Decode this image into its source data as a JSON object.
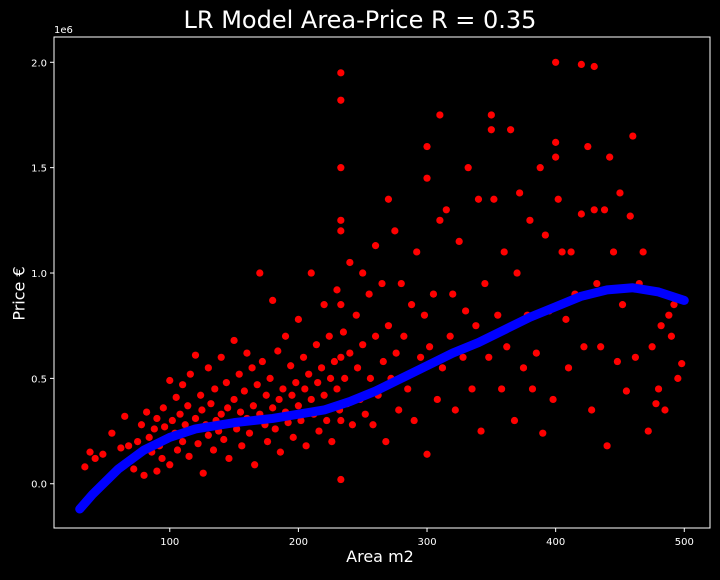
{
  "chart_data": {
    "type": "scatter",
    "title": "LR Model Area-Price R = 0.35",
    "xlabel": "Area m2",
    "ylabel": "Price €",
    "y_offset_text": "1e6",
    "xlim": [
      10,
      520
    ],
    "ylim": [
      -0.21,
      2.12
    ],
    "x_ticks": [
      100,
      200,
      300,
      400,
      500
    ],
    "y_ticks": [
      0.0,
      0.5,
      1.0,
      1.5,
      2.0
    ],
    "x_tick_labels": [
      "100",
      "200",
      "300",
      "400",
      "500"
    ],
    "y_tick_labels": [
      "0.0",
      "0.5",
      "1.0",
      "1.5",
      "2.0"
    ],
    "grid": false,
    "background": "#000000",
    "axes_color": "#ffffff",
    "series": [
      {
        "kind": "scatter",
        "color": "#ff0000",
        "points": [
          [
            34,
            0.08
          ],
          [
            38,
            0.15
          ],
          [
            42,
            0.12
          ],
          [
            48,
            0.14
          ],
          [
            55,
            0.24
          ],
          [
            62,
            0.17
          ],
          [
            65,
            0.32
          ],
          [
            68,
            0.18
          ],
          [
            70,
            0.11
          ],
          [
            72,
            0.07
          ],
          [
            75,
            0.2
          ],
          [
            78,
            0.28
          ],
          [
            80,
            0.04
          ],
          [
            82,
            0.34
          ],
          [
            84,
            0.22
          ],
          [
            86,
            0.15
          ],
          [
            88,
            0.26
          ],
          [
            90,
            0.06
          ],
          [
            90,
            0.31
          ],
          [
            92,
            0.18
          ],
          [
            94,
            0.12
          ],
          [
            95,
            0.36
          ],
          [
            96,
            0.27
          ],
          [
            98,
            0.21
          ],
          [
            100,
            0.49
          ],
          [
            100,
            0.09
          ],
          [
            102,
            0.3
          ],
          [
            104,
            0.24
          ],
          [
            105,
            0.41
          ],
          [
            106,
            0.16
          ],
          [
            108,
            0.33
          ],
          [
            110,
            0.47
          ],
          [
            110,
            0.2
          ],
          [
            112,
            0.28
          ],
          [
            114,
            0.37
          ],
          [
            115,
            0.13
          ],
          [
            116,
            0.52
          ],
          [
            118,
            0.26
          ],
          [
            120,
            0.61
          ],
          [
            120,
            0.31
          ],
          [
            122,
            0.19
          ],
          [
            124,
            0.42
          ],
          [
            125,
            0.35
          ],
          [
            126,
            0.05
          ],
          [
            128,
            0.28
          ],
          [
            130,
            0.55
          ],
          [
            130,
            0.23
          ],
          [
            132,
            0.38
          ],
          [
            134,
            0.16
          ],
          [
            135,
            0.45
          ],
          [
            136,
            0.3
          ],
          [
            138,
            0.25
          ],
          [
            140,
            0.6
          ],
          [
            140,
            0.33
          ],
          [
            142,
            0.21
          ],
          [
            144,
            0.48
          ],
          [
            145,
            0.36
          ],
          [
            146,
            0.12
          ],
          [
            148,
            0.29
          ],
          [
            150,
            0.68
          ],
          [
            150,
            0.4
          ],
          [
            152,
            0.26
          ],
          [
            154,
            0.52
          ],
          [
            155,
            0.34
          ],
          [
            156,
            0.18
          ],
          [
            158,
            0.44
          ],
          [
            160,
            0.62
          ],
          [
            160,
            0.31
          ],
          [
            162,
            0.24
          ],
          [
            164,
            0.55
          ],
          [
            165,
            0.37
          ],
          [
            166,
            0.09
          ],
          [
            168,
            0.47
          ],
          [
            170,
            1.0
          ],
          [
            170,
            0.33
          ],
          [
            172,
            0.58
          ],
          [
            174,
            0.28
          ],
          [
            175,
            0.42
          ],
          [
            176,
            0.2
          ],
          [
            178,
            0.5
          ],
          [
            180,
            0.87
          ],
          [
            180,
            0.36
          ],
          [
            182,
            0.26
          ],
          [
            184,
            0.63
          ],
          [
            185,
            0.4
          ],
          [
            186,
            0.15
          ],
          [
            188,
            0.45
          ],
          [
            190,
            0.7
          ],
          [
            190,
            0.34
          ],
          [
            192,
            0.29
          ],
          [
            194,
            0.56
          ],
          [
            195,
            0.42
          ],
          [
            196,
            0.22
          ],
          [
            198,
            0.48
          ],
          [
            200,
            0.78
          ],
          [
            200,
            0.37
          ],
          [
            202,
            0.3
          ],
          [
            204,
            0.6
          ],
          [
            205,
            0.45
          ],
          [
            206,
            0.18
          ],
          [
            208,
            0.52
          ],
          [
            210,
            1.0
          ],
          [
            210,
            0.4
          ],
          [
            212,
            0.33
          ],
          [
            214,
            0.66
          ],
          [
            215,
            0.48
          ],
          [
            216,
            0.25
          ],
          [
            218,
            0.55
          ],
          [
            220,
            0.85
          ],
          [
            220,
            0.42
          ],
          [
            222,
            0.3
          ],
          [
            224,
            0.7
          ],
          [
            225,
            0.5
          ],
          [
            226,
            0.2
          ],
          [
            228,
            0.58
          ],
          [
            230,
            0.92
          ],
          [
            230,
            0.45
          ],
          [
            232,
            0.35
          ],
          [
            233,
            1.95
          ],
          [
            233,
            1.82
          ],
          [
            233,
            1.5
          ],
          [
            233,
            1.25
          ],
          [
            233,
            1.2
          ],
          [
            233,
            0.85
          ],
          [
            233,
            0.6
          ],
          [
            233,
            0.3
          ],
          [
            233,
            0.02
          ],
          [
            235,
            0.72
          ],
          [
            236,
            0.5
          ],
          [
            238,
            0.38
          ],
          [
            240,
            1.05
          ],
          [
            240,
            0.62
          ],
          [
            242,
            0.28
          ],
          [
            245,
            0.8
          ],
          [
            246,
            0.55
          ],
          [
            248,
            0.4
          ],
          [
            250,
            1.0
          ],
          [
            250,
            0.66
          ],
          [
            252,
            0.33
          ],
          [
            255,
            0.9
          ],
          [
            256,
            0.5
          ],
          [
            258,
            0.28
          ],
          [
            260,
            1.13
          ],
          [
            260,
            0.7
          ],
          [
            262,
            0.42
          ],
          [
            265,
            0.95
          ],
          [
            266,
            0.58
          ],
          [
            268,
            0.2
          ],
          [
            270,
            1.35
          ],
          [
            270,
            0.75
          ],
          [
            272,
            0.5
          ],
          [
            275,
            1.2
          ],
          [
            276,
            0.62
          ],
          [
            278,
            0.35
          ],
          [
            280,
            0.95
          ],
          [
            282,
            0.7
          ],
          [
            285,
            0.45
          ],
          [
            288,
            0.85
          ],
          [
            290,
            0.3
          ],
          [
            292,
            1.1
          ],
          [
            295,
            0.6
          ],
          [
            298,
            0.8
          ],
          [
            300,
            1.6
          ],
          [
            300,
            1.45
          ],
          [
            300,
            0.14
          ],
          [
            302,
            0.65
          ],
          [
            305,
            0.9
          ],
          [
            308,
            0.4
          ],
          [
            310,
            1.75
          ],
          [
            310,
            1.25
          ],
          [
            312,
            0.55
          ],
          [
            315,
            1.3
          ],
          [
            318,
            0.7
          ],
          [
            320,
            0.9
          ],
          [
            322,
            0.35
          ],
          [
            325,
            1.15
          ],
          [
            328,
            0.6
          ],
          [
            330,
            0.82
          ],
          [
            332,
            1.5
          ],
          [
            335,
            0.45
          ],
          [
            338,
            0.75
          ],
          [
            340,
            1.35
          ],
          [
            342,
            0.25
          ],
          [
            345,
            0.95
          ],
          [
            348,
            0.6
          ],
          [
            350,
            1.75
          ],
          [
            350,
            1.68
          ],
          [
            352,
            1.35
          ],
          [
            355,
            0.8
          ],
          [
            358,
            0.45
          ],
          [
            360,
            1.1
          ],
          [
            362,
            0.65
          ],
          [
            365,
            1.68
          ],
          [
            368,
            0.3
          ],
          [
            370,
            1.0
          ],
          [
            372,
            1.38
          ],
          [
            375,
            0.55
          ],
          [
            378,
            0.8
          ],
          [
            380,
            1.25
          ],
          [
            382,
            0.45
          ],
          [
            385,
            0.62
          ],
          [
            388,
            1.5
          ],
          [
            390,
            0.24
          ],
          [
            392,
            1.18
          ],
          [
            395,
            0.82
          ],
          [
            398,
            0.4
          ],
          [
            400,
            2.0
          ],
          [
            400,
            1.62
          ],
          [
            400,
            1.55
          ],
          [
            402,
            1.35
          ],
          [
            405,
            1.1
          ],
          [
            408,
            0.78
          ],
          [
            410,
            0.55
          ],
          [
            412,
            1.1
          ],
          [
            415,
            0.9
          ],
          [
            420,
            1.99
          ],
          [
            420,
            1.28
          ],
          [
            422,
            0.65
          ],
          [
            425,
            1.6
          ],
          [
            428,
            0.35
          ],
          [
            430,
            1.98
          ],
          [
            430,
            1.3
          ],
          [
            432,
            0.95
          ],
          [
            435,
            0.65
          ],
          [
            438,
            1.3
          ],
          [
            440,
            0.18
          ],
          [
            442,
            1.55
          ],
          [
            445,
            1.1
          ],
          [
            448,
            0.58
          ],
          [
            450,
            1.38
          ],
          [
            452,
            0.85
          ],
          [
            455,
            0.44
          ],
          [
            458,
            1.27
          ],
          [
            460,
            1.65
          ],
          [
            462,
            0.6
          ],
          [
            465,
            0.95
          ],
          [
            468,
            1.1
          ],
          [
            472,
            0.25
          ],
          [
            475,
            0.65
          ],
          [
            478,
            0.38
          ],
          [
            480,
            0.45
          ],
          [
            482,
            0.75
          ],
          [
            485,
            0.35
          ],
          [
            488,
            0.8
          ],
          [
            490,
            0.7
          ],
          [
            492,
            0.85
          ],
          [
            495,
            0.5
          ],
          [
            498,
            0.57
          ]
        ]
      },
      {
        "kind": "line",
        "color": "#0000ff",
        "x": [
          30,
          40,
          60,
          80,
          100,
          120,
          150,
          180,
          200,
          220,
          240,
          260,
          280,
          300,
          320,
          340,
          360,
          380,
          400,
          420,
          440,
          460,
          480,
          500
        ],
        "y": [
          -0.12,
          -0.05,
          0.07,
          0.16,
          0.22,
          0.26,
          0.29,
          0.31,
          0.33,
          0.35,
          0.39,
          0.44,
          0.5,
          0.56,
          0.62,
          0.67,
          0.73,
          0.79,
          0.84,
          0.89,
          0.92,
          0.93,
          0.91,
          0.87
        ]
      }
    ]
  }
}
